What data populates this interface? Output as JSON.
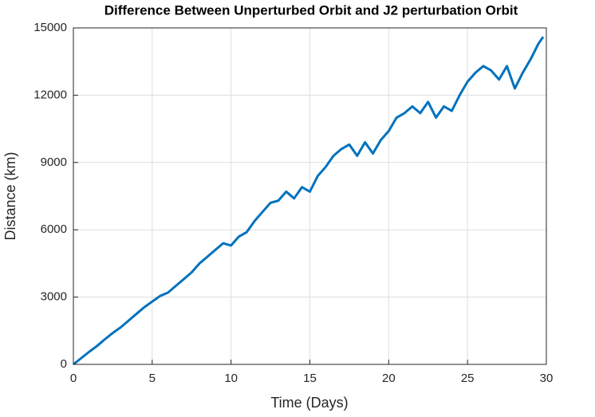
{
  "chart_data": {
    "type": "line",
    "title": "Difference Between Unperturbed Orbit and J2 perturbation Orbit",
    "x_label": "Time (Days)",
    "y_label": "Distance (km)",
    "xlim": [
      0,
      30
    ],
    "ylim": [
      0,
      15000
    ],
    "xticks": [
      0,
      5,
      10,
      15,
      20,
      25,
      30
    ],
    "yticks": [
      0,
      3000,
      6000,
      9000,
      12000,
      15000
    ],
    "grid": true,
    "x": [
      0,
      0.5,
      1,
      1.5,
      2,
      2.5,
      3,
      3.5,
      4,
      4.5,
      5,
      5.5,
      6,
      6.5,
      7,
      7.5,
      8,
      8.5,
      9,
      9.5,
      10,
      10.5,
      11,
      11.5,
      12,
      12.5,
      13,
      13.5,
      14,
      14.5,
      15,
      15.5,
      16,
      16.5,
      17,
      17.5,
      18,
      18.5,
      19,
      19.5,
      20,
      20.5,
      21,
      21.5,
      22,
      22.5,
      23,
      23.5,
      24,
      24.5,
      25,
      25.5,
      26,
      26.5,
      27,
      27.5,
      28,
      28.5,
      29,
      29.5,
      29.8
    ],
    "series": [
      {
        "name": "Distance",
        "color": "#0072bd",
        "values": [
          0,
          280,
          560,
          820,
          1120,
          1400,
          1650,
          1950,
          2250,
          2550,
          2800,
          3050,
          3200,
          3500,
          3800,
          4100,
          4500,
          4800,
          5100,
          5400,
          5300,
          5700,
          5900,
          6400,
          6800,
          7200,
          7300,
          7700,
          7400,
          7900,
          7700,
          8400,
          8800,
          9300,
          9600,
          9800,
          9300,
          9900,
          9400,
          10000,
          10400,
          11000,
          11200,
          11500,
          11200,
          11700,
          11000,
          11500,
          11300,
          12000,
          12600,
          13000,
          13300,
          13100,
          12700,
          13300,
          12300,
          13000,
          13600,
          14300,
          14600
        ]
      }
    ]
  }
}
